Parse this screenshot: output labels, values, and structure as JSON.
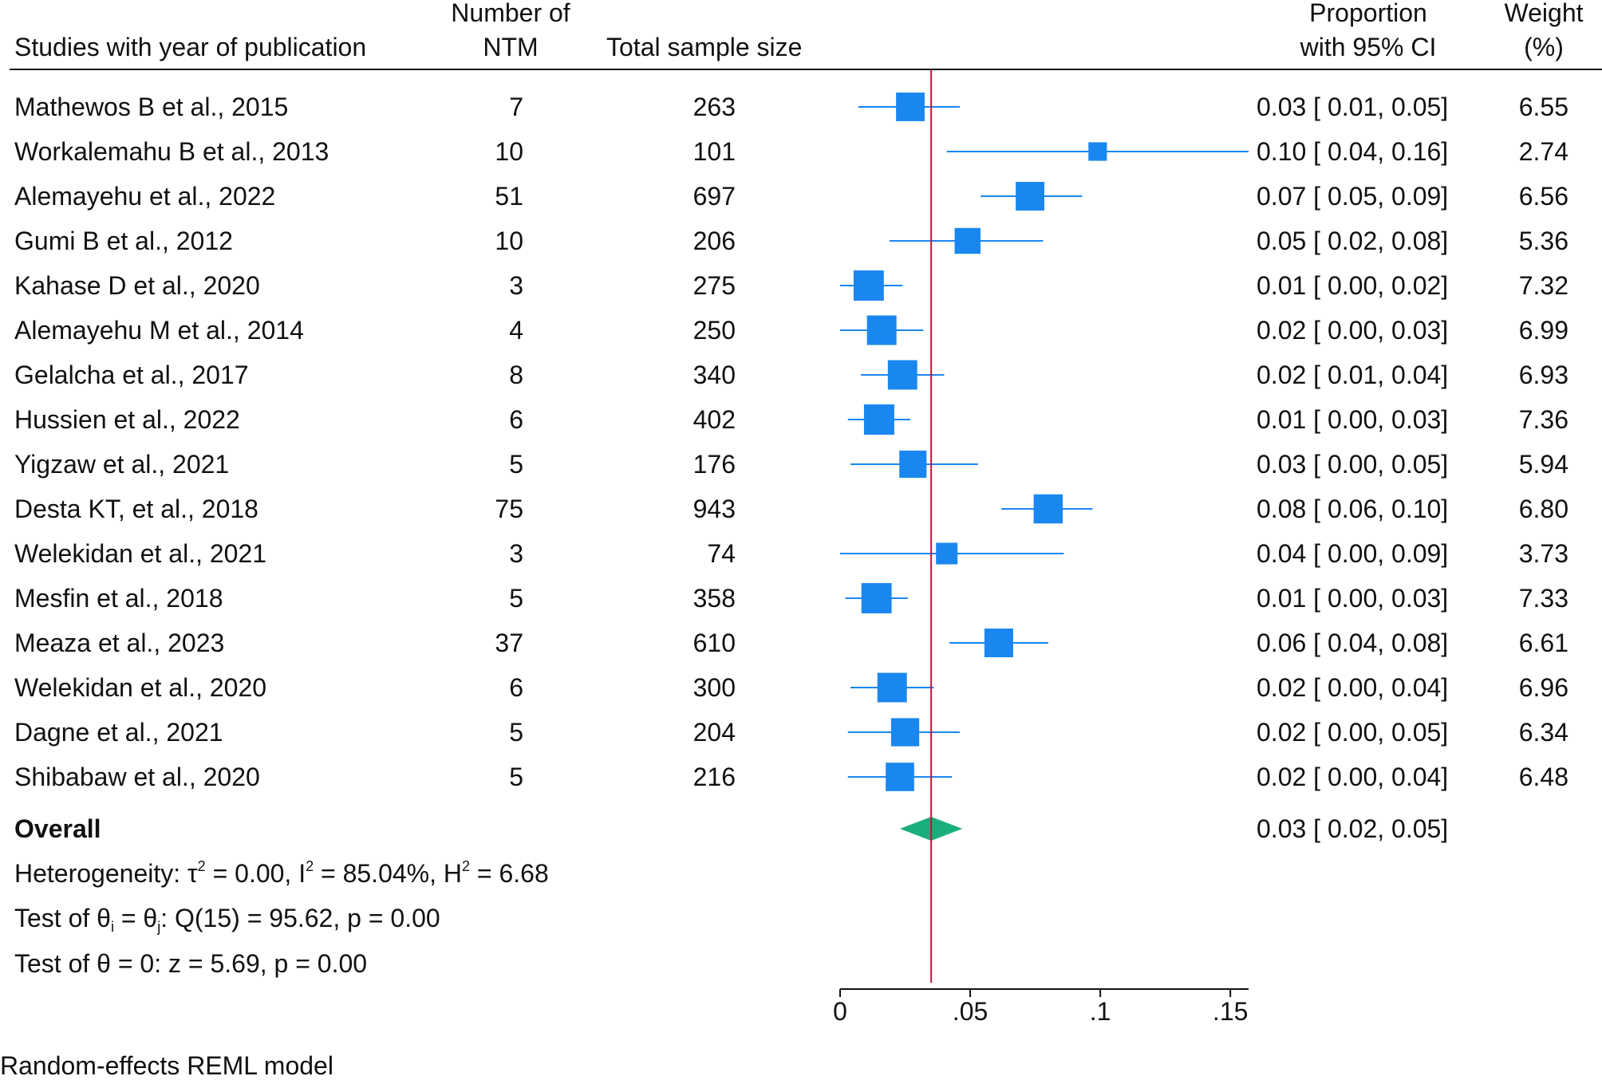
{
  "header": {
    "studies": "Studies with year of publication",
    "ntm_line1": "Number of",
    "ntm_line2": "NTM",
    "total": "Total sample size",
    "prop_line1": "Proportion",
    "prop_line2": "with 95% CI",
    "weight_line1": "Weight",
    "weight_line2": "(%)"
  },
  "overall": {
    "label": "Overall",
    "estimate_text": "0.03 [ 0.02,  0.05]"
  },
  "stats": {
    "het_prefix": "Heterogeneity: τ",
    "het_tau_sup": "2",
    "het_mid1": " = 0.00, I",
    "het_i_sup": "2",
    "het_mid2": " = 85.04%, H",
    "het_h_sup": "2",
    "het_end": " = 6.68",
    "test1_prefix": "Test of θ",
    "test1_sub_i": "i",
    "test1_mid": " = θ",
    "test1_sub_j": "j",
    "test1_end": ": Q(15) = 95.62, p = 0.00",
    "test2": "Test of θ = 0: z = 5.69, p = 0.00"
  },
  "footer": "Random-effects REML model",
  "colors": {
    "marker": "#1a87f0",
    "diamond": "#1aaf7a",
    "refline": "#c0143c",
    "text": "#111111"
  },
  "chart_data": {
    "type": "forest",
    "x_ticks": [
      0,
      0.05,
      0.1,
      0.15
    ],
    "x_tick_labels": [
      "0",
      ".05",
      ".1",
      ".15"
    ],
    "xlim": [
      0,
      0.157
    ],
    "overall": {
      "estimate": 0.035,
      "ci": [
        0.023,
        0.047
      ]
    },
    "reference_line": 0.035,
    "studies": [
      {
        "study": "Mathewos B et al., 2015",
        "ntm": "7",
        "total": "263",
        "p": 0.027,
        "lo": 0.007,
        "hi": 0.046,
        "weight": 6.55,
        "ci_text": "0.03 [ 0.01,  0.05]",
        "weight_text": "6.55"
      },
      {
        "study": "Workalemahu B et al., 2013",
        "ntm": "10",
        "total": "101",
        "p": 0.099,
        "lo": 0.041,
        "hi": 0.157,
        "weight": 2.74,
        "ci_text": "0.10 [ 0.04,  0.16]",
        "weight_text": "2.74"
      },
      {
        "study": "Alemayehu et al., 2022",
        "ntm": "51",
        "total": "697",
        "p": 0.073,
        "lo": 0.054,
        "hi": 0.093,
        "weight": 6.56,
        "ci_text": "0.07 [ 0.05,  0.09]",
        "weight_text": "6.56"
      },
      {
        "study": "Gumi B et al., 2012",
        "ntm": "10",
        "total": "206",
        "p": 0.049,
        "lo": 0.019,
        "hi": 0.078,
        "weight": 5.36,
        "ci_text": "0.05 [ 0.02,  0.08]",
        "weight_text": "5.36"
      },
      {
        "study": "Kahase D et al., 2020",
        "ntm": "3",
        "total": "275",
        "p": 0.011,
        "lo": 0.0,
        "hi": 0.024,
        "weight": 7.32,
        "ci_text": "0.01 [ 0.00,  0.02]",
        "weight_text": "7.32"
      },
      {
        "study": "Alemayehu M et al., 2014",
        "ntm": "4",
        "total": "250",
        "p": 0.016,
        "lo": 0.0,
        "hi": 0.032,
        "weight": 6.99,
        "ci_text": "0.02 [ 0.00,  0.03]",
        "weight_text": "6.99"
      },
      {
        "study": "Gelalcha et al., 2017",
        "ntm": "8",
        "total": "340",
        "p": 0.024,
        "lo": 0.008,
        "hi": 0.04,
        "weight": 6.93,
        "ci_text": "0.02 [ 0.01,  0.04]",
        "weight_text": "6.93"
      },
      {
        "study": "Hussien et al., 2022",
        "ntm": "6",
        "total": "402",
        "p": 0.015,
        "lo": 0.003,
        "hi": 0.027,
        "weight": 7.36,
        "ci_text": "0.01 [ 0.00,  0.03]",
        "weight_text": "7.36"
      },
      {
        "study": "Yigzaw et al., 2021",
        "ntm": "5",
        "total": "176",
        "p": 0.028,
        "lo": 0.004,
        "hi": 0.053,
        "weight": 5.94,
        "ci_text": "0.03 [ 0.00,  0.05]",
        "weight_text": "5.94"
      },
      {
        "study": "Desta KT, et al., 2018",
        "ntm": "75",
        "total": "943",
        "p": 0.08,
        "lo": 0.062,
        "hi": 0.097,
        "weight": 6.8,
        "ci_text": "0.08 [ 0.06,  0.10]",
        "weight_text": "6.80"
      },
      {
        "study": "Welekidan et al., 2021",
        "ntm": "3",
        "total": "74",
        "p": 0.041,
        "lo": 0.0,
        "hi": 0.086,
        "weight": 3.73,
        "ci_text": "0.04 [ 0.00,  0.09]",
        "weight_text": "3.73"
      },
      {
        "study": "Mesfin et al., 2018",
        "ntm": "5",
        "total": "358",
        "p": 0.014,
        "lo": 0.002,
        "hi": 0.026,
        "weight": 7.33,
        "ci_text": "0.01 [ 0.00,  0.03]",
        "weight_text": "7.33"
      },
      {
        "study": "Meaza et al., 2023",
        "ntm": "37",
        "total": "610",
        "p": 0.061,
        "lo": 0.042,
        "hi": 0.08,
        "weight": 6.61,
        "ci_text": "0.06 [ 0.04,  0.08]",
        "weight_text": "6.61"
      },
      {
        "study": "Welekidan et al., 2020",
        "ntm": "6",
        "total": "300",
        "p": 0.02,
        "lo": 0.004,
        "hi": 0.036,
        "weight": 6.96,
        "ci_text": "0.02 [ 0.00,  0.04]",
        "weight_text": "6.96"
      },
      {
        "study": "Dagne et al., 2021",
        "ntm": "5",
        "total": "204",
        "p": 0.025,
        "lo": 0.003,
        "hi": 0.046,
        "weight": 6.34,
        "ci_text": "0.02 [ 0.00,  0.05]",
        "weight_text": "6.34"
      },
      {
        "study": "Shibabaw et al., 2020",
        "ntm": "5",
        "total": "216",
        "p": 0.023,
        "lo": 0.003,
        "hi": 0.043,
        "weight": 6.48,
        "ci_text": "0.02 [ 0.00,  0.04]",
        "weight_text": "6.48"
      }
    ]
  }
}
